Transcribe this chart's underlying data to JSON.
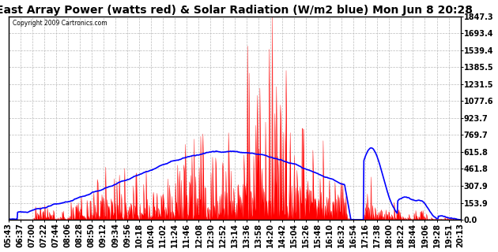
{
  "title": "East Array Power (watts red) & Solar Radiation (W/m2 blue) Mon Jun 8 20:28",
  "copyright_text": "Copyright 2009 Cartronics.com",
  "y_max": 1847.3,
  "y_min": 0.0,
  "y_ticks": [
    0.0,
    153.9,
    307.9,
    461.8,
    615.8,
    769.7,
    923.7,
    1077.6,
    1231.5,
    1385.5,
    1539.4,
    1693.4,
    1847.3
  ],
  "x_labels": [
    "05:43",
    "06:37",
    "07:00",
    "07:22",
    "07:44",
    "08:06",
    "08:28",
    "08:50",
    "09:12",
    "09:34",
    "09:56",
    "10:18",
    "10:40",
    "11:02",
    "11:24",
    "11:46",
    "12:08",
    "12:30",
    "12:52",
    "13:14",
    "13:36",
    "13:58",
    "14:20",
    "14:42",
    "15:04",
    "15:26",
    "15:48",
    "16:10",
    "16:32",
    "16:54",
    "17:16",
    "17:38",
    "18:00",
    "18:22",
    "18:44",
    "19:06",
    "19:28",
    "19:51",
    "20:13"
  ],
  "background_color": "#ffffff",
  "plot_bg_color": "#ffffff",
  "grid_color": "#bbbbbb",
  "red_color": "#ff0000",
  "blue_color": "#0000ff",
  "title_fontsize": 10,
  "tick_fontsize": 7
}
